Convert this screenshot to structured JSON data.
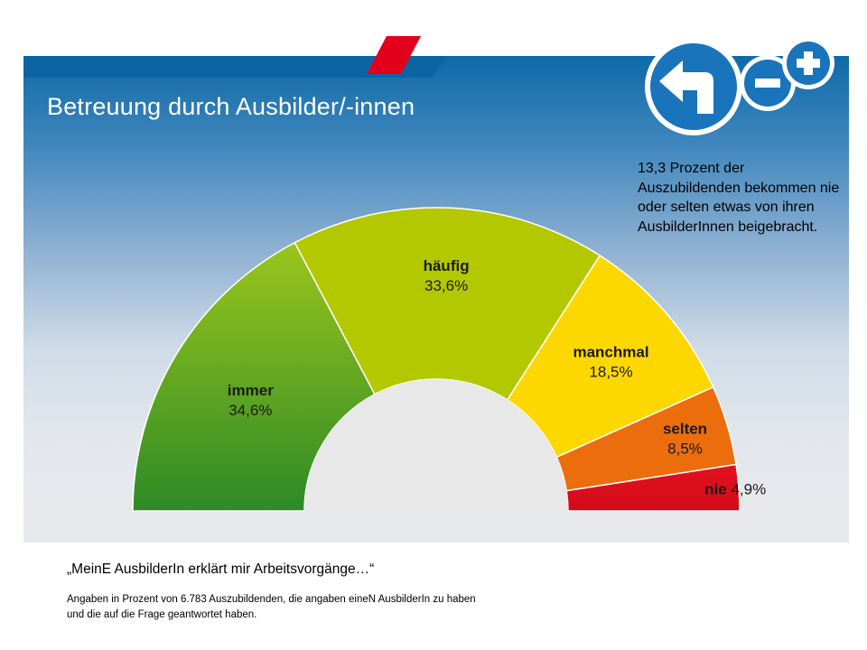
{
  "header": {
    "title": "Betreuung durch Ausbilder/-innen"
  },
  "icons": {
    "back": "arrow-back-left-icon",
    "zoom_out": "minus-icon",
    "zoom_in": "plus-icon"
  },
  "callout": "13,3 Prozent der Auszubildenden bekommen nie oder selten etwas von ihren AusbilderInnen beigebracht.",
  "quote": "„MeinE AusbilderIn erklärt mir Arbeitsvorgänge…“",
  "footnote": "Angaben in Prozent von 6.783 Auszubildenden, die angaben eineN AusbilderIn zu haben und die auf die Frage geantwortet haben.",
  "chart_data": {
    "type": "pie",
    "shape": "semicircle-donut",
    "categories": [
      "immer",
      "häufig",
      "manchmal",
      "selten",
      "nie"
    ],
    "values": [
      34.6,
      33.6,
      18.5,
      8.5,
      4.9
    ],
    "value_labels": [
      "34,6%",
      "33,6%",
      "18,5%",
      "8,5%",
      "4,9%"
    ],
    "colors": [
      "#5aa52c",
      "#b4c800",
      "#fdd800",
      "#ec6d0b",
      "#e3111f"
    ],
    "title": "Betreuung durch Ausbilder/-innen"
  }
}
